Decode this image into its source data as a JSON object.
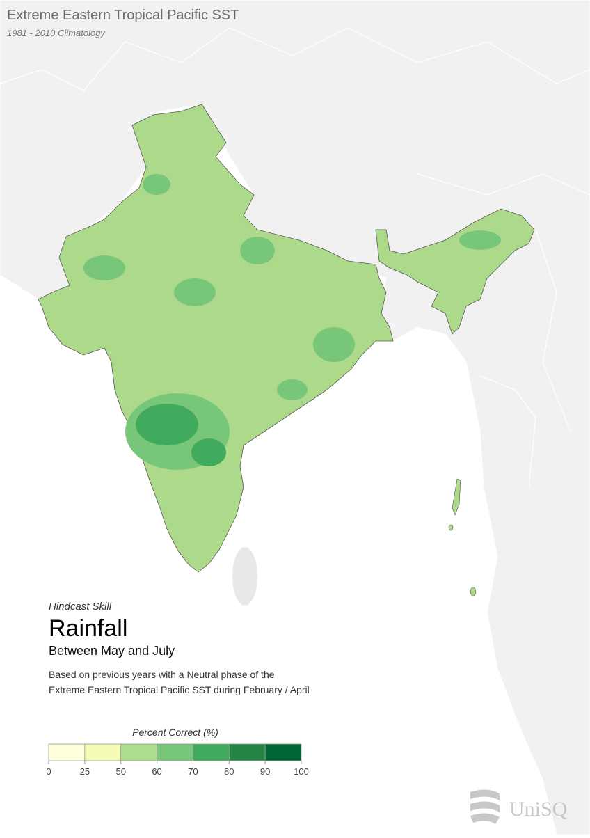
{
  "header": {
    "title": "Extreme Eastern Tropical Pacific SST",
    "subtitle": "1981 - 2010 Climatology"
  },
  "caption": {
    "kicker": "Hindcast Skill",
    "heading": "Rainfall",
    "period": "Between May and July",
    "description": [
      "Based on previous years with a Neutral phase of the",
      "Extreme Eastern Tropical Pacific SST during February / April"
    ]
  },
  "legend": {
    "title": "Percent Correct (%)",
    "bins": [
      0,
      25,
      50,
      60,
      70,
      80,
      90,
      100
    ],
    "colors": [
      "#ffffdd",
      "#f5fab5",
      "#addd8e",
      "#78c679",
      "#41ab5d",
      "#238443",
      "#006837"
    ]
  },
  "logo": {
    "text": "UniSQ"
  }
}
